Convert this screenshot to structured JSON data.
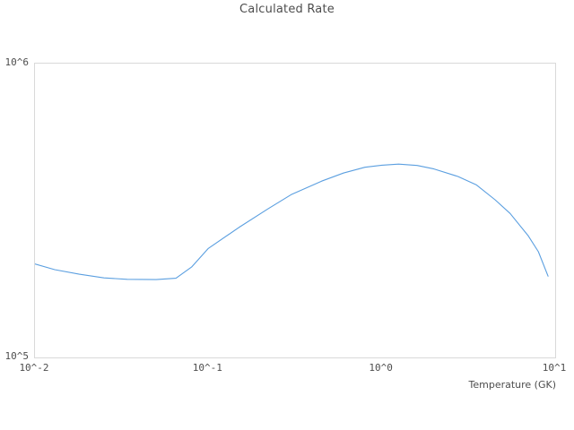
{
  "title": "Calculated Rate",
  "colors": {
    "background": "#ffffff",
    "frame": "#d9d9d9",
    "text": "#4d4d4d",
    "line": "#5b9fe0"
  },
  "chart_data": {
    "type": "line",
    "title": "Calculated Rate",
    "xlabel": "Temperature (GK)",
    "ylabel": "",
    "x_scale": "log",
    "y_scale": "log",
    "xlim": [
      0.01,
      10
    ],
    "ylim": [
      100000,
      1000000
    ],
    "grid": false,
    "legend": "none",
    "x_ticks": [
      {
        "value": 0.01,
        "label": "10^-2"
      },
      {
        "value": 0.1,
        "label": "10^-1"
      },
      {
        "value": 1,
        "label": "10^0"
      },
      {
        "value": 10,
        "label": "10^1"
      }
    ],
    "y_ticks": [
      {
        "value": 100000,
        "label": "10^5"
      },
      {
        "value": 1000000,
        "label": "10^6"
      }
    ],
    "series": [
      {
        "name": "calculated-rate",
        "x": [
          0.01,
          0.013,
          0.018,
          0.025,
          0.034,
          0.05,
          0.065,
          0.08,
          0.1,
          0.15,
          0.22,
          0.3,
          0.45,
          0.6,
          0.8,
          1.0,
          1.25,
          1.6,
          2.0,
          2.75,
          3.5,
          4.5,
          5.5,
          7.0,
          8.0,
          9.1
        ],
        "y": [
          208000,
          199000,
          192000,
          186500,
          184500,
          184000,
          186000,
          203000,
          235000,
          277000,
          320000,
          358000,
          398000,
          424000,
          444000,
          451000,
          455000,
          450000,
          438000,
          413000,
          387000,
          344000,
          309000,
          259000,
          229000,
          189000
        ]
      }
    ]
  }
}
